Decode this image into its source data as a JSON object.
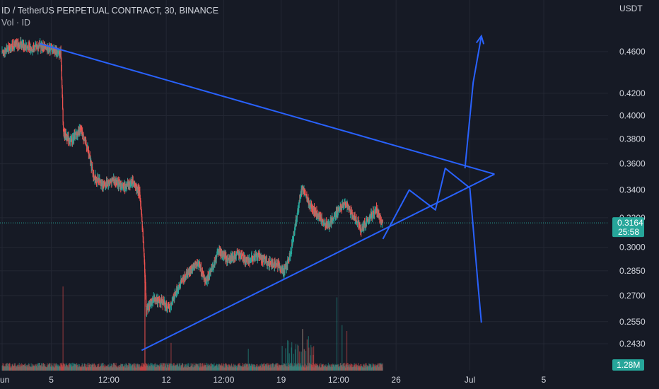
{
  "header": {
    "symbol_line": "ID / TetherUS PERPETUAL CONTRACT, 30, BINANCE",
    "volume_line": "Vol · ID"
  },
  "price_axis": {
    "currency": "USDT",
    "current_price": "0.3164",
    "countdown": "25:58",
    "current_volume": "1.28M"
  },
  "colors": {
    "background": "#161a25",
    "up": "#26a69a",
    "down": "#ef5350",
    "drawing": "#2962ff",
    "price_badge": "#26a69a",
    "grid": "#232733"
  },
  "chart_data": {
    "type": "candlestick",
    "y_scale": "log",
    "y_ticks": [
      0.46,
      0.42,
      0.4,
      0.38,
      0.36,
      0.34,
      0.32,
      0.3,
      0.285,
      0.27,
      0.255,
      0.243
    ],
    "y_tick_labels": [
      "0.4600",
      "0.4200",
      "0.4000",
      "0.3800",
      "0.3600",
      "0.3400",
      "0.3200",
      "0.3000",
      "0.2850",
      "0.2700",
      "0.2550",
      "0.2430"
    ],
    "x_tick_labels": [
      "un",
      "5",
      "12:00",
      "12",
      "12:00",
      "19",
      "12:00",
      "26",
      "Jul",
      "5"
    ],
    "x_ticks_day": [
      2,
      5,
      8.5,
      12,
      15.5,
      19,
      22.5,
      26,
      30.5,
      35
    ],
    "x_range_day": [
      2,
      37.5
    ],
    "price_path": [
      {
        "day": 2.0,
        "price": 0.458
      },
      {
        "day": 2.6,
        "price": 0.465
      },
      {
        "day": 3.2,
        "price": 0.468
      },
      {
        "day": 3.8,
        "price": 0.463
      },
      {
        "day": 4.4,
        "price": 0.466
      },
      {
        "day": 5.2,
        "price": 0.462
      },
      {
        "day": 5.6,
        "price": 0.458
      },
      {
        "day": 5.75,
        "price": 0.385
      },
      {
        "day": 6.2,
        "price": 0.378
      },
      {
        "day": 6.8,
        "price": 0.388
      },
      {
        "day": 7.2,
        "price": 0.374
      },
      {
        "day": 7.6,
        "price": 0.35
      },
      {
        "day": 8.2,
        "price": 0.344
      },
      {
        "day": 8.8,
        "price": 0.348
      },
      {
        "day": 9.4,
        "price": 0.342
      },
      {
        "day": 10.0,
        "price": 0.346
      },
      {
        "day": 10.4,
        "price": 0.338
      },
      {
        "day": 10.65,
        "price": 0.3
      },
      {
        "day": 10.8,
        "price": 0.262
      },
      {
        "day": 11.2,
        "price": 0.268
      },
      {
        "day": 11.8,
        "price": 0.266
      },
      {
        "day": 12.2,
        "price": 0.262
      },
      {
        "day": 12.8,
        "price": 0.276
      },
      {
        "day": 13.4,
        "price": 0.285
      },
      {
        "day": 14.0,
        "price": 0.29
      },
      {
        "day": 14.4,
        "price": 0.278
      },
      {
        "day": 14.8,
        "price": 0.286
      },
      {
        "day": 15.2,
        "price": 0.298
      },
      {
        "day": 15.8,
        "price": 0.292
      },
      {
        "day": 16.4,
        "price": 0.296
      },
      {
        "day": 17.0,
        "price": 0.291
      },
      {
        "day": 17.6,
        "price": 0.295
      },
      {
        "day": 18.2,
        "price": 0.29
      },
      {
        "day": 18.8,
        "price": 0.289
      },
      {
        "day": 19.2,
        "price": 0.284
      },
      {
        "day": 19.6,
        "price": 0.296
      },
      {
        "day": 19.9,
        "price": 0.316
      },
      {
        "day": 20.3,
        "price": 0.342
      },
      {
        "day": 20.7,
        "price": 0.33
      },
      {
        "day": 21.1,
        "price": 0.324
      },
      {
        "day": 21.5,
        "price": 0.318
      },
      {
        "day": 21.9,
        "price": 0.314
      },
      {
        "day": 22.4,
        "price": 0.324
      },
      {
        "day": 22.9,
        "price": 0.33
      },
      {
        "day": 23.4,
        "price": 0.322
      },
      {
        "day": 23.9,
        "price": 0.312
      },
      {
        "day": 24.4,
        "price": 0.32
      },
      {
        "day": 24.8,
        "price": 0.326
      },
      {
        "day": 25.1,
        "price": 0.317
      },
      {
        "day": 25.2,
        "price": 0.3164
      }
    ],
    "volume_spikes": [
      {
        "day": 5.7,
        "rel": 0.85
      },
      {
        "day": 10.7,
        "rel": 0.95
      },
      {
        "day": 20.3,
        "rel": 0.42
      },
      {
        "day": 22.4,
        "rel": 0.74
      },
      {
        "day": 22.7,
        "rel": 0.46
      },
      {
        "day": 23.0,
        "rel": 0.4
      },
      {
        "day": 12.3,
        "rel": 0.28
      },
      {
        "day": 17.0,
        "rel": 0.22
      }
    ],
    "drawings": {
      "upper_trendline": [
        {
          "day": 4.3,
          "price": 0.468
        },
        {
          "day": 32.0,
          "price": 0.352
        }
      ],
      "lower_trendline": [
        {
          "day": 10.5,
          "price": 0.2395
        },
        {
          "day": 32.0,
          "price": 0.352
        }
      ],
      "projected_path": [
        {
          "day": 25.2,
          "price": 0.3055
        },
        {
          "day": 26.8,
          "price": 0.34
        },
        {
          "day": 28.4,
          "price": 0.3255
        },
        {
          "day": 29.0,
          "price": 0.3565
        },
        {
          "day": 30.5,
          "price": 0.3415
        }
      ],
      "up_arrow": [
        {
          "day": 30.2,
          "price": 0.3565
        },
        {
          "day": 30.7,
          "price": 0.43
        },
        {
          "day": 31.2,
          "price": 0.476
        }
      ],
      "down_arrow": [
        {
          "day": 30.5,
          "price": 0.3415
        },
        {
          "day": 31.0,
          "price": 0.2755
        },
        {
          "day": 31.2,
          "price": 0.2545
        }
      ]
    }
  }
}
